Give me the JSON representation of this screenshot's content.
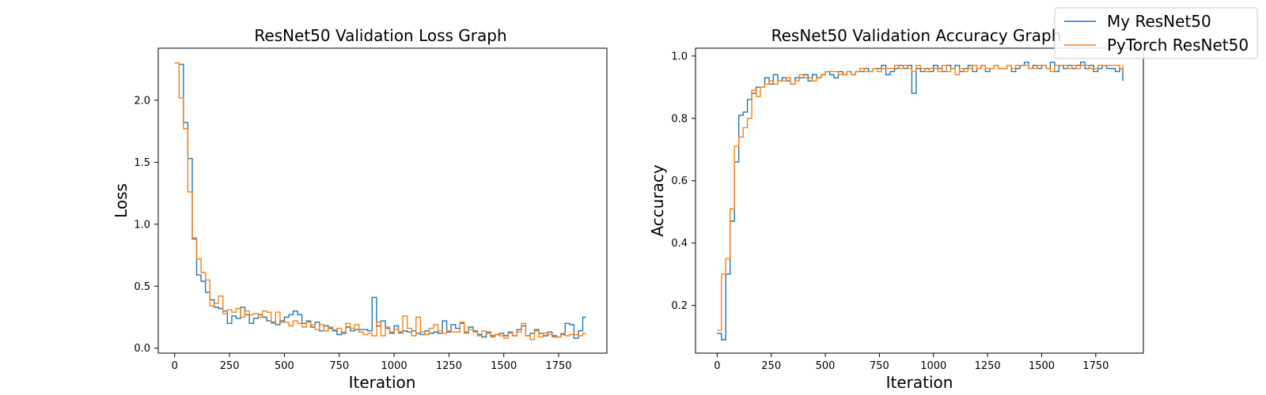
{
  "colors": {
    "my_resnet50": "#1f77b4",
    "pytorch_resnet50": "#ff7f0e"
  },
  "legend": {
    "location": "upper-right",
    "entries": [
      "My ResNet50",
      "PyTorch ResNet50"
    ]
  },
  "chart_data": [
    {
      "type": "line",
      "drawstyle": "steps",
      "title": "ResNet50 Validation Loss Graph",
      "xlabel": "Iteration",
      "ylabel": "Loss",
      "xlim": [
        -75,
        1970
      ],
      "ylim": [
        -0.04,
        2.42
      ],
      "xticks": [
        0,
        250,
        500,
        750,
        1000,
        1250,
        1500,
        1750
      ],
      "yticks": [
        0.0,
        0.5,
        1.0,
        1.5,
        2.0
      ],
      "ytick_labels": [
        "0.0",
        "0.5",
        "1.0",
        "1.5",
        "2.0"
      ],
      "grid": false,
      "x": [
        0,
        20,
        40,
        60,
        80,
        100,
        120,
        140,
        160,
        180,
        200,
        220,
        240,
        260,
        280,
        300,
        320,
        340,
        360,
        380,
        400,
        420,
        440,
        460,
        480,
        500,
        520,
        540,
        560,
        580,
        600,
        620,
        640,
        660,
        680,
        700,
        720,
        740,
        760,
        780,
        800,
        820,
        840,
        860,
        880,
        900,
        920,
        940,
        960,
        980,
        1000,
        1020,
        1040,
        1060,
        1080,
        1100,
        1120,
        1140,
        1160,
        1180,
        1200,
        1220,
        1240,
        1260,
        1280,
        1300,
        1320,
        1340,
        1360,
        1380,
        1400,
        1420,
        1440,
        1460,
        1480,
        1500,
        1520,
        1540,
        1560,
        1580,
        1600,
        1620,
        1640,
        1660,
        1680,
        1700,
        1720,
        1740,
        1760,
        1780,
        1800,
        1820,
        1840,
        1860,
        1875
      ],
      "series": [
        {
          "name": "My ResNet50",
          "values": [
            2.3,
            2.29,
            1.82,
            1.53,
            0.88,
            0.59,
            0.54,
            0.45,
            0.39,
            0.33,
            0.32,
            0.3,
            0.2,
            0.26,
            0.24,
            0.33,
            0.27,
            0.2,
            0.24,
            0.27,
            0.25,
            0.22,
            0.21,
            0.19,
            0.22,
            0.25,
            0.27,
            0.3,
            0.27,
            0.2,
            0.22,
            0.17,
            0.21,
            0.14,
            0.18,
            0.16,
            0.14,
            0.11,
            0.12,
            0.17,
            0.14,
            0.15,
            0.15,
            0.15,
            0.14,
            0.41,
            0.18,
            0.22,
            0.16,
            0.12,
            0.18,
            0.13,
            0.14,
            0.13,
            0.14,
            0.12,
            0.11,
            0.14,
            0.12,
            0.13,
            0.12,
            0.22,
            0.13,
            0.19,
            0.16,
            0.2,
            0.13,
            0.17,
            0.14,
            0.11,
            0.09,
            0.13,
            0.1,
            0.11,
            0.12,
            0.1,
            0.13,
            0.1,
            0.15,
            0.18,
            0.1,
            0.12,
            0.15,
            0.12,
            0.1,
            0.13,
            0.1,
            0.09,
            0.11,
            0.2,
            0.19,
            0.08,
            0.14,
            0.25,
            0.25
          ]
        },
        {
          "name": "PyTorch ResNet50",
          "values": [
            2.3,
            2.02,
            1.77,
            1.26,
            0.89,
            0.72,
            0.61,
            0.55,
            0.34,
            0.36,
            0.42,
            0.28,
            0.31,
            0.29,
            0.32,
            0.25,
            0.3,
            0.27,
            0.28,
            0.25,
            0.3,
            0.29,
            0.2,
            0.29,
            0.21,
            0.21,
            0.18,
            0.22,
            0.2,
            0.17,
            0.21,
            0.19,
            0.15,
            0.19,
            0.14,
            0.17,
            0.15,
            0.16,
            0.13,
            0.2,
            0.16,
            0.19,
            0.13,
            0.11,
            0.12,
            0.1,
            0.21,
            0.1,
            0.17,
            0.13,
            0.15,
            0.12,
            0.26,
            0.16,
            0.1,
            0.25,
            0.13,
            0.11,
            0.16,
            0.19,
            0.14,
            0.12,
            0.14,
            0.13,
            0.13,
            0.21,
            0.12,
            0.15,
            0.13,
            0.1,
            0.14,
            0.12,
            0.09,
            0.11,
            0.1,
            0.08,
            0.12,
            0.1,
            0.13,
            0.2,
            0.1,
            0.07,
            0.14,
            0.09,
            0.12,
            0.11,
            0.09,
            0.09,
            0.12,
            0.1,
            0.11,
            0.11,
            0.1,
            0.12,
            0.12
          ]
        }
      ]
    },
    {
      "type": "line",
      "drawstyle": "steps",
      "title": "ResNet50 Validation Accuracy Graph",
      "xlabel": "Iteration",
      "ylabel": "Accuracy",
      "xlim": [
        -100,
        1970
      ],
      "ylim": [
        0.047,
        1.025
      ],
      "xticks": [
        0,
        250,
        500,
        750,
        1000,
        1250,
        1500,
        1750
      ],
      "yticks": [
        0.2,
        0.4,
        0.6,
        0.8,
        1.0
      ],
      "ytick_labels": [
        "0.2",
        "0.4",
        "0.6",
        "0.8",
        "1.0"
      ],
      "grid": false,
      "x": [
        0,
        20,
        40,
        60,
        80,
        100,
        120,
        140,
        160,
        180,
        200,
        220,
        240,
        260,
        280,
        300,
        320,
        340,
        360,
        380,
        400,
        420,
        440,
        460,
        480,
        500,
        520,
        540,
        560,
        580,
        600,
        620,
        640,
        660,
        680,
        700,
        720,
        740,
        760,
        780,
        800,
        820,
        840,
        860,
        880,
        900,
        920,
        940,
        960,
        980,
        1000,
        1020,
        1040,
        1060,
        1080,
        1100,
        1120,
        1140,
        1160,
        1180,
        1200,
        1220,
        1240,
        1260,
        1280,
        1300,
        1320,
        1340,
        1360,
        1380,
        1400,
        1420,
        1440,
        1460,
        1480,
        1500,
        1520,
        1540,
        1560,
        1580,
        1600,
        1620,
        1640,
        1660,
        1680,
        1700,
        1720,
        1740,
        1760,
        1780,
        1800,
        1820,
        1840,
        1860,
        1875
      ],
      "series": [
        {
          "name": "My ResNet50",
          "values": [
            0.11,
            0.09,
            0.3,
            0.47,
            0.66,
            0.81,
            0.82,
            0.86,
            0.88,
            0.9,
            0.9,
            0.93,
            0.91,
            0.94,
            0.92,
            0.93,
            0.92,
            0.91,
            0.93,
            0.93,
            0.94,
            0.92,
            0.94,
            0.93,
            0.94,
            0.95,
            0.94,
            0.93,
            0.95,
            0.94,
            0.95,
            0.94,
            0.95,
            0.95,
            0.96,
            0.95,
            0.96,
            0.96,
            0.97,
            0.94,
            0.95,
            0.96,
            0.97,
            0.96,
            0.97,
            0.88,
            0.96,
            0.95,
            0.96,
            0.95,
            0.97,
            0.96,
            0.95,
            0.97,
            0.96,
            0.97,
            0.95,
            0.96,
            0.97,
            0.95,
            0.96,
            0.97,
            0.95,
            0.96,
            0.97,
            0.96,
            0.96,
            0.97,
            0.95,
            0.96,
            0.97,
            0.98,
            0.96,
            0.97,
            0.96,
            0.97,
            0.96,
            0.98,
            0.95,
            0.97,
            0.96,
            0.97,
            0.96,
            0.97,
            0.98,
            0.96,
            0.97,
            0.95,
            0.96,
            0.97,
            0.96,
            0.96,
            0.95,
            0.96,
            0.92
          ]
        },
        {
          "name": "PyTorch ResNet50",
          "values": [
            0.12,
            0.3,
            0.35,
            0.51,
            0.71,
            0.74,
            0.77,
            0.8,
            0.89,
            0.87,
            0.9,
            0.91,
            0.92,
            0.91,
            0.92,
            0.92,
            0.93,
            0.91,
            0.92,
            0.94,
            0.93,
            0.93,
            0.92,
            0.93,
            0.94,
            0.95,
            0.95,
            0.95,
            0.94,
            0.94,
            0.95,
            0.94,
            0.95,
            0.96,
            0.95,
            0.95,
            0.96,
            0.95,
            0.96,
            0.96,
            0.96,
            0.97,
            0.96,
            0.97,
            0.96,
            0.95,
            0.97,
            0.96,
            0.95,
            0.96,
            0.96,
            0.95,
            0.97,
            0.95,
            0.96,
            0.94,
            0.96,
            0.95,
            0.96,
            0.97,
            0.96,
            0.97,
            0.96,
            0.96,
            0.97,
            0.96,
            0.96,
            0.97,
            0.96,
            0.97,
            0.97,
            0.97,
            0.96,
            0.96,
            0.97,
            0.97,
            0.96,
            0.95,
            0.97,
            0.97,
            0.97,
            0.96,
            0.97,
            0.96,
            0.97,
            0.97,
            0.96,
            0.96,
            0.97,
            0.97,
            0.97,
            0.97,
            0.97,
            0.96,
            0.97
          ]
        }
      ]
    }
  ]
}
